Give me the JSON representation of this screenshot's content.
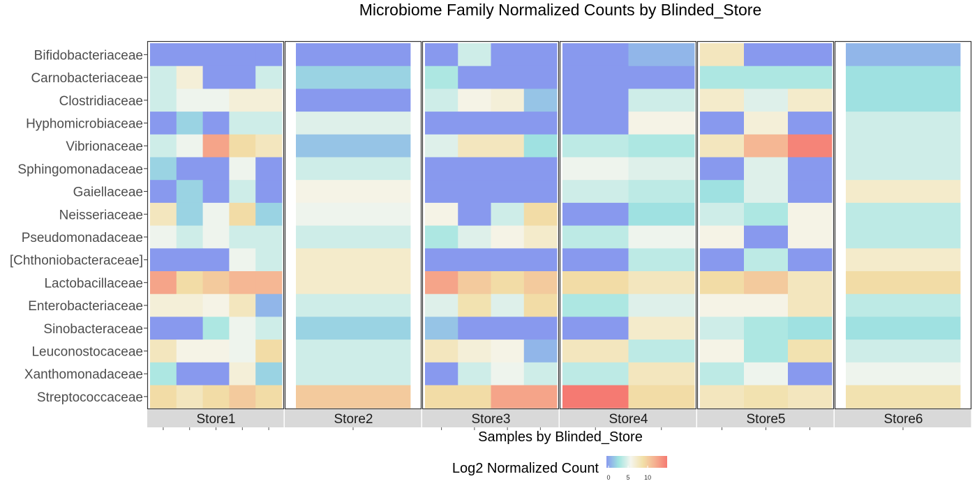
{
  "chart_data": {
    "type": "heatmap",
    "title": "Microbiome Family Normalized Counts by Blinded_Store",
    "xlabel": "Samples by Blinded_Store",
    "ylabel": "",
    "legend": {
      "title": "Log2 Normalized Count",
      "ticks": [
        0,
        5,
        10
      ],
      "range": [
        0,
        13
      ],
      "position": "bottom"
    },
    "colors": {
      "scale": [
        "#8899ee",
        "#a0e4e0",
        "#f5f5ee",
        "#f2e0a8",
        "#f5b090",
        "#f57a72"
      ],
      "strip_bg": "#d9d9d9",
      "panel_border": "#333333"
    },
    "rows": [
      "Bifidobacteriaceae",
      "Carnobacteriaceae",
      "Clostridiaceae",
      "Hyphomicrobiaceae",
      "Vibrionaceae",
      "Sphingomonadaceae",
      "Gaiellaceae",
      "Neisseriaceae",
      "Pseudomonadaceae",
      "[Chthoniobacteraceae]",
      "Lactobacillaceae",
      "Enterobacteriaceae",
      "Sinobacteraceae",
      "Leuconostocaceae",
      "Xanthomonadaceae",
      "Streptococcaceae"
    ],
    "facets": [
      {
        "name": "Store1",
        "samples": 5,
        "values": [
          [
            0,
            0,
            0,
            0,
            0
          ],
          [
            4,
            6,
            0,
            0,
            4
          ],
          [
            4,
            5,
            5,
            6,
            6
          ],
          [
            0,
            2,
            0,
            4,
            4
          ],
          [
            4,
            5,
            11,
            8,
            7
          ],
          [
            2,
            0,
            0,
            5,
            0
          ],
          [
            0,
            2,
            0,
            4,
            0
          ],
          [
            7,
            2,
            5,
            8,
            2
          ],
          [
            5,
            4,
            5,
            4,
            4
          ],
          [
            0,
            0,
            0,
            5,
            4
          ],
          [
            11,
            8,
            9,
            10,
            10
          ],
          [
            6,
            6,
            5.5,
            7,
            1
          ],
          [
            0,
            0,
            3,
            5,
            4
          ],
          [
            7,
            5.5,
            5.5,
            5,
            8
          ],
          [
            3,
            0,
            0,
            6,
            2
          ],
          [
            8,
            7,
            8,
            9,
            8
          ]
        ]
      },
      {
        "name": "Store2",
        "samples": 1,
        "values": [
          [
            0
          ],
          [
            2
          ],
          [
            0
          ],
          [
            4.5
          ],
          [
            1.5
          ],
          [
            4
          ],
          [
            5.5
          ],
          [
            5
          ],
          [
            4
          ],
          [
            6.5
          ],
          [
            6.5
          ],
          [
            4
          ],
          [
            2
          ],
          [
            4
          ],
          [
            4
          ],
          [
            9
          ]
        ]
      },
      {
        "name": "Store3",
        "samples": 4,
        "values": [
          [
            0,
            4,
            0,
            0
          ],
          [
            3,
            0,
            0,
            0
          ],
          [
            4,
            5.5,
            6,
            1.5
          ],
          [
            0,
            0,
            0,
            0
          ],
          [
            4.5,
            7,
            7,
            2.5
          ],
          [
            0,
            0,
            0,
            0
          ],
          [
            0,
            0,
            0,
            0
          ],
          [
            5.5,
            0,
            4,
            8
          ],
          [
            3,
            4.5,
            5.5,
            6.5
          ],
          [
            0,
            0,
            0,
            0
          ],
          [
            11,
            9,
            8,
            9
          ],
          [
            4.5,
            7.5,
            4.5,
            8
          ],
          [
            1.5,
            0,
            0,
            0
          ],
          [
            7,
            6,
            5.5,
            1
          ],
          [
            0,
            4,
            5,
            4
          ],
          [
            8,
            8,
            11,
            11
          ]
        ]
      },
      {
        "name": "Store4",
        "samples": 2,
        "values": [
          [
            0,
            1
          ],
          [
            0,
            0
          ],
          [
            0,
            4
          ],
          [
            0,
            5.5
          ],
          [
            3.5,
            3
          ],
          [
            5,
            4.5
          ],
          [
            4,
            3.5
          ],
          [
            0,
            2.5
          ],
          [
            3.5,
            5
          ],
          [
            0,
            3.5
          ],
          [
            8,
            7
          ],
          [
            3,
            4.5
          ],
          [
            0,
            6.5
          ],
          [
            7,
            3.5
          ],
          [
            3.5,
            7
          ],
          [
            13,
            8
          ]
        ]
      },
      {
        "name": "Store5",
        "samples": 3,
        "values": [
          [
            7,
            0,
            0
          ],
          [
            3,
            3,
            3
          ],
          [
            6.5,
            4.5,
            6.5
          ],
          [
            0,
            6,
            0
          ],
          [
            7,
            10,
            12.5
          ],
          [
            0,
            4.5,
            0
          ],
          [
            2.5,
            4.5,
            0
          ],
          [
            4,
            3,
            5.5
          ],
          [
            5.5,
            0,
            5.5
          ],
          [
            0,
            3.5,
            0
          ],
          [
            8,
            9,
            7
          ],
          [
            5.5,
            5.5,
            7
          ],
          [
            4,
            3,
            2.5
          ],
          [
            5.5,
            3,
            7.5
          ],
          [
            3.5,
            5,
            0
          ],
          [
            7,
            7.5,
            7
          ]
        ]
      },
      {
        "name": "Store6",
        "samples": 1,
        "values": [
          [
            1
          ],
          [
            2.5
          ],
          [
            2.5
          ],
          [
            4
          ],
          [
            4
          ],
          [
            4
          ],
          [
            6.5
          ],
          [
            3.5
          ],
          [
            3.5
          ],
          [
            6.5
          ],
          [
            8
          ],
          [
            3.5
          ],
          [
            2.5
          ],
          [
            4
          ],
          [
            5
          ],
          [
            7.5
          ]
        ]
      }
    ]
  }
}
